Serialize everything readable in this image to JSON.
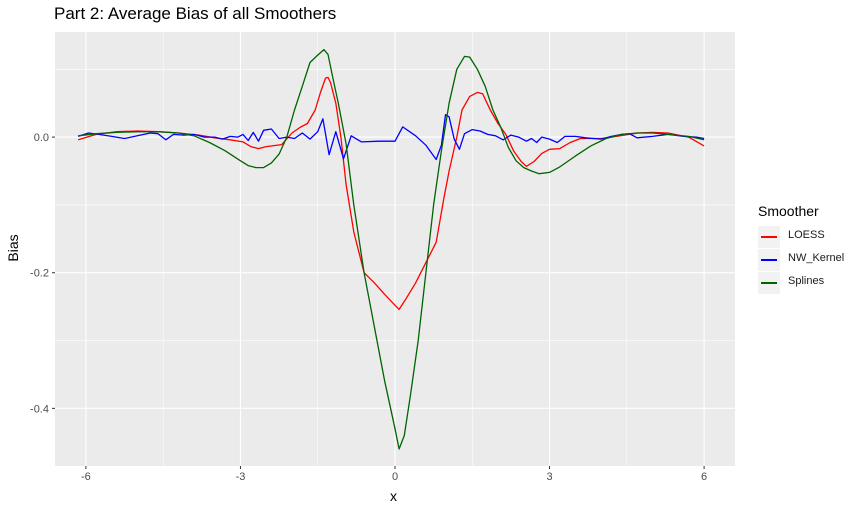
{
  "chart_data": {
    "type": "line",
    "title": "Part 2: Average Bias of all Smoothers",
    "xlabel": "x",
    "ylabel": "Bias",
    "xlim": [
      -6.6,
      6.6
    ],
    "ylim": [
      -0.485,
      0.155
    ],
    "x_ticks": [
      -6,
      -3,
      0,
      3,
      6
    ],
    "x_tick_labels": [
      "-6",
      "-3",
      "0",
      "3",
      "6"
    ],
    "y_ticks": [
      0.0,
      -0.2,
      -0.4
    ],
    "y_tick_labels": [
      "0.0",
      "-0.2",
      "-0.4"
    ],
    "grid": true,
    "legend_title": "Smoother",
    "legend_position": "right",
    "series": [
      {
        "name": "LOESS",
        "color": "#ff0000",
        "points": [
          [
            -6.15,
            -0.004
          ],
          [
            -5.8,
            0.004
          ],
          [
            -5.4,
            0.008
          ],
          [
            -5.0,
            0.009
          ],
          [
            -4.6,
            0.008
          ],
          [
            -4.2,
            0.006
          ],
          [
            -3.8,
            0.003
          ],
          [
            -3.5,
            -0.001
          ],
          [
            -3.2,
            -0.004
          ],
          [
            -2.95,
            -0.007
          ],
          [
            -2.8,
            -0.014
          ],
          [
            -2.65,
            -0.017
          ],
          [
            -2.5,
            -0.014
          ],
          [
            -2.2,
            -0.011
          ],
          [
            -2.0,
            0.006
          ],
          [
            -1.85,
            0.014
          ],
          [
            -1.7,
            0.02
          ],
          [
            -1.55,
            0.04
          ],
          [
            -1.45,
            0.065
          ],
          [
            -1.35,
            0.087
          ],
          [
            -1.3,
            0.088
          ],
          [
            -1.25,
            0.08
          ],
          [
            -1.15,
            0.05
          ],
          [
            -1.05,
            0.0
          ],
          [
            -0.95,
            -0.07
          ],
          [
            -0.8,
            -0.14
          ],
          [
            -0.6,
            -0.2
          ],
          [
            -0.4,
            -0.215
          ],
          [
            -0.2,
            -0.232
          ],
          [
            0.0,
            -0.248
          ],
          [
            0.08,
            -0.254
          ],
          [
            0.2,
            -0.24
          ],
          [
            0.4,
            -0.215
          ],
          [
            0.6,
            -0.185
          ],
          [
            0.8,
            -0.155
          ],
          [
            0.95,
            -0.09
          ],
          [
            1.05,
            -0.05
          ],
          [
            1.2,
            0.0
          ],
          [
            1.3,
            0.04
          ],
          [
            1.45,
            0.06
          ],
          [
            1.6,
            0.066
          ],
          [
            1.7,
            0.064
          ],
          [
            1.85,
            0.04
          ],
          [
            2.0,
            0.02
          ],
          [
            2.15,
            0.004
          ],
          [
            2.3,
            -0.02
          ],
          [
            2.45,
            -0.036
          ],
          [
            2.55,
            -0.043
          ],
          [
            2.7,
            -0.036
          ],
          [
            2.85,
            -0.024
          ],
          [
            3.0,
            -0.018
          ],
          [
            3.2,
            -0.017
          ],
          [
            3.4,
            -0.008
          ],
          [
            3.6,
            -0.002
          ],
          [
            4.0,
            -0.002
          ],
          [
            4.3,
            0.001
          ],
          [
            4.7,
            0.006
          ],
          [
            5.0,
            0.007
          ],
          [
            5.3,
            0.006
          ],
          [
            5.7,
            0.0
          ],
          [
            6.0,
            -0.013
          ]
        ]
      },
      {
        "name": "NW_Kernel",
        "color": "#0000ff",
        "points": [
          [
            -6.15,
            0.001
          ],
          [
            -5.95,
            0.006
          ],
          [
            -5.75,
            0.004
          ],
          [
            -5.5,
            0.001
          ],
          [
            -5.25,
            -0.002
          ],
          [
            -5.0,
            0.002
          ],
          [
            -4.75,
            0.006
          ],
          [
            -4.6,
            0.005
          ],
          [
            -4.45,
            -0.004
          ],
          [
            -4.3,
            0.004
          ],
          [
            -4.1,
            0.003
          ],
          [
            -3.9,
            0.004
          ],
          [
            -3.7,
            0.0
          ],
          [
            -3.5,
            0.0
          ],
          [
            -3.35,
            -0.003
          ],
          [
            -3.2,
            0.001
          ],
          [
            -3.05,
            0.0
          ],
          [
            -2.95,
            0.004
          ],
          [
            -2.85,
            -0.005
          ],
          [
            -2.75,
            0.007
          ],
          [
            -2.65,
            -0.006
          ],
          [
            -2.55,
            0.01
          ],
          [
            -2.4,
            0.012
          ],
          [
            -2.25,
            -0.002
          ],
          [
            -2.1,
            0.0
          ],
          [
            -1.95,
            -0.002
          ],
          [
            -1.8,
            0.006
          ],
          [
            -1.65,
            -0.003
          ],
          [
            -1.5,
            0.008
          ],
          [
            -1.4,
            0.027
          ],
          [
            -1.28,
            -0.026
          ],
          [
            -1.15,
            0.008
          ],
          [
            -1.0,
            -0.032
          ],
          [
            -0.85,
            0.002
          ],
          [
            -0.65,
            -0.007
          ],
          [
            -0.3,
            -0.006
          ],
          [
            0.0,
            -0.006
          ],
          [
            0.15,
            0.015
          ],
          [
            0.4,
            0.002
          ],
          [
            0.6,
            -0.012
          ],
          [
            0.8,
            -0.033
          ],
          [
            0.9,
            -0.012
          ],
          [
            0.98,
            0.033
          ],
          [
            1.05,
            0.03
          ],
          [
            1.15,
            -0.003
          ],
          [
            1.25,
            -0.018
          ],
          [
            1.35,
            0.005
          ],
          [
            1.5,
            0.011
          ],
          [
            1.65,
            0.009
          ],
          [
            1.8,
            0.004
          ],
          [
            1.95,
            0.002
          ],
          [
            2.1,
            -0.004
          ],
          [
            2.25,
            0.003
          ],
          [
            2.4,
            0.0
          ],
          [
            2.55,
            -0.006
          ],
          [
            2.65,
            -0.002
          ],
          [
            2.75,
            -0.008
          ],
          [
            2.85,
            0.0
          ],
          [
            3.0,
            -0.003
          ],
          [
            3.15,
            -0.008
          ],
          [
            3.3,
            0.001
          ],
          [
            3.5,
            0.001
          ],
          [
            3.7,
            -0.001
          ],
          [
            4.0,
            -0.003
          ],
          [
            4.2,
            0.001
          ],
          [
            4.4,
            0.004
          ],
          [
            4.55,
            0.005
          ],
          [
            4.7,
            -0.001
          ],
          [
            5.0,
            0.001
          ],
          [
            5.3,
            0.004
          ],
          [
            5.6,
            0.001
          ],
          [
            5.85,
            0.0
          ],
          [
            6.0,
            -0.002
          ]
        ]
      },
      {
        "name": "Splines",
        "color": "#006400",
        "points": [
          [
            -6.15,
            0.002
          ],
          [
            -5.8,
            0.005
          ],
          [
            -5.4,
            0.007
          ],
          [
            -5.0,
            0.008
          ],
          [
            -4.6,
            0.008
          ],
          [
            -4.2,
            0.006
          ],
          [
            -3.9,
            0.002
          ],
          [
            -3.6,
            -0.008
          ],
          [
            -3.3,
            -0.02
          ],
          [
            -3.0,
            -0.035
          ],
          [
            -2.85,
            -0.042
          ],
          [
            -2.7,
            -0.045
          ],
          [
            -2.55,
            -0.045
          ],
          [
            -2.4,
            -0.038
          ],
          [
            -2.25,
            -0.025
          ],
          [
            -2.1,
            0.0
          ],
          [
            -1.95,
            0.04
          ],
          [
            -1.8,
            0.075
          ],
          [
            -1.65,
            0.11
          ],
          [
            -1.5,
            0.121
          ],
          [
            -1.38,
            0.129
          ],
          [
            -1.3,
            0.122
          ],
          [
            -1.2,
            0.085
          ],
          [
            -1.1,
            0.05
          ],
          [
            -0.95,
            -0.01
          ],
          [
            -0.8,
            -0.1
          ],
          [
            -0.6,
            -0.2
          ],
          [
            -0.4,
            -0.28
          ],
          [
            -0.2,
            -0.36
          ],
          [
            0.0,
            -0.43
          ],
          [
            0.08,
            -0.46
          ],
          [
            0.18,
            -0.44
          ],
          [
            0.3,
            -0.38
          ],
          [
            0.45,
            -0.3
          ],
          [
            0.6,
            -0.2
          ],
          [
            0.75,
            -0.1
          ],
          [
            0.9,
            -0.02
          ],
          [
            1.05,
            0.05
          ],
          [
            1.2,
            0.1
          ],
          [
            1.35,
            0.119
          ],
          [
            1.45,
            0.118
          ],
          [
            1.6,
            0.1
          ],
          [
            1.75,
            0.075
          ],
          [
            1.9,
            0.04
          ],
          [
            2.05,
            0.015
          ],
          [
            2.2,
            -0.015
          ],
          [
            2.35,
            -0.035
          ],
          [
            2.5,
            -0.045
          ],
          [
            2.65,
            -0.05
          ],
          [
            2.8,
            -0.054
          ],
          [
            3.0,
            -0.052
          ],
          [
            3.2,
            -0.044
          ],
          [
            3.5,
            -0.028
          ],
          [
            3.8,
            -0.013
          ],
          [
            4.1,
            -0.002
          ],
          [
            4.4,
            0.004
          ],
          [
            4.7,
            0.006
          ],
          [
            5.0,
            0.006
          ],
          [
            5.3,
            0.004
          ],
          [
            5.7,
            0.001
          ],
          [
            6.0,
            -0.004
          ]
        ]
      }
    ]
  }
}
